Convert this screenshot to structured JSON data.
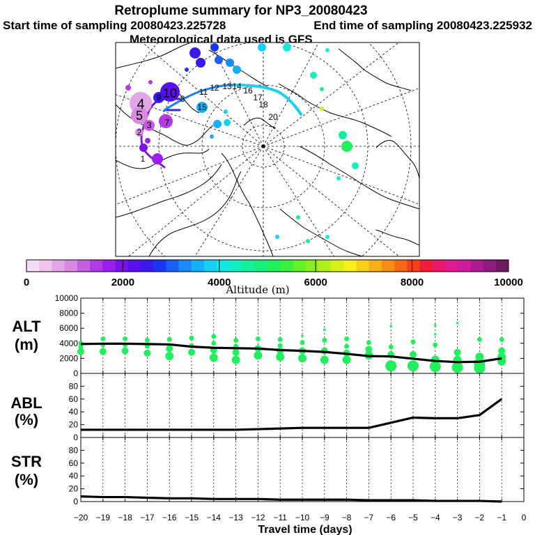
{
  "header": {
    "title": "Retroplume summary for NP3_20080423",
    "start_time": "Start time of sampling 20080423.225728",
    "end_time": "End time of sampling 20080423.225932",
    "met_data": "Meteorological data used is GFS"
  },
  "map": {
    "plume_labels": [
      {
        "text": "4",
        "color": "#000000"
      },
      {
        "text": "5",
        "color": "#000000"
      },
      {
        "text": "3",
        "color": "#000000"
      },
      {
        "text": "2",
        "color": "#000000"
      },
      {
        "text": "1",
        "color": "#000000"
      },
      {
        "text": "7",
        "color": "#000000"
      },
      {
        "text": "10",
        "color": "#000000"
      },
      {
        "text": "9",
        "color": "#000000"
      },
      {
        "text": "8",
        "color": "#000000"
      },
      {
        "text": "11",
        "color": "#000000"
      },
      {
        "text": "12",
        "color": "#000000"
      },
      {
        "text": "13",
        "color": "#000000"
      },
      {
        "text": "14",
        "color": "#000000"
      },
      {
        "text": "15",
        "color": "#000000"
      },
      {
        "text": "16",
        "color": "#000000"
      },
      {
        "text": "17",
        "color": "#000000"
      },
      {
        "text": "18",
        "color": "#000000"
      },
      {
        "text": "20",
        "color": "#000000"
      }
    ]
  },
  "colorbar": {
    "title": "Altitude (m)",
    "ticks": [
      "0",
      "2000",
      "4000",
      "6000",
      "8000",
      "10000"
    ],
    "colors": [
      "#f4dcf4",
      "#ecc4ec",
      "#e2a6e6",
      "#d88ae0",
      "#c65ee0",
      "#b13ae6",
      "#9a20ee",
      "#7c10f0",
      "#5810ee",
      "#3a18ee",
      "#1a36f4",
      "#1a60f6",
      "#1a8af8",
      "#16b0f8",
      "#14d2f6",
      "#12eae8",
      "#12f0c0",
      "#12f09a",
      "#16f07a",
      "#20f05c",
      "#3af03c",
      "#62f026",
      "#8af01c",
      "#b0f018",
      "#d8f016",
      "#f6f016",
      "#f6d016",
      "#f6b016",
      "#f68e16",
      "#f66a16",
      "#f64016",
      "#f01c3a",
      "#ea1a68",
      "#e21a90",
      "#d01aa0",
      "#b01a90",
      "#901a80",
      "#701a60"
    ]
  },
  "chart_data": [
    {
      "type": "line",
      "panel": "ALT",
      "ylabel": "ALT\n(m)",
      "ylabel_line1": "ALT",
      "ylabel_line2": "(m)",
      "ylim": [
        0,
        10000
      ],
      "yticks": [
        0,
        2000,
        4000,
        6000,
        8000,
        10000
      ],
      "x": [
        -20,
        -19,
        -18,
        -17,
        -16,
        -15,
        -14,
        -13,
        -12,
        -11,
        -10,
        -9,
        -8,
        -7,
        -6,
        -5,
        -4,
        -3,
        -2,
        -1
      ],
      "series": [
        {
          "name": "mean altitude",
          "values": [
            3900,
            3950,
            3950,
            3900,
            3850,
            3550,
            3400,
            3350,
            3300,
            3100,
            3000,
            2850,
            2600,
            2300,
            2250,
            1950,
            1650,
            1500,
            1550,
            2000
          ]
        }
      ],
      "scatter_clusters": [
        {
          "x": -20,
          "y": [
            4000,
            3500,
            2900
          ]
        },
        {
          "x": -19,
          "y": [
            4600,
            3800,
            2900
          ]
        },
        {
          "x": -18,
          "y": [
            4600,
            3800,
            3000
          ]
        },
        {
          "x": -17,
          "y": [
            4400,
            3600,
            2700
          ]
        },
        {
          "x": -16,
          "y": [
            4500,
            3300,
            2300
          ]
        },
        {
          "x": -15,
          "y": [
            4700,
            3700,
            2800
          ]
        },
        {
          "x": -14,
          "y": [
            4900,
            4000,
            3100,
            2100
          ]
        },
        {
          "x": -13,
          "y": [
            4400,
            3600,
            2800,
            1800
          ]
        },
        {
          "x": -12,
          "y": [
            4600,
            3300,
            2400
          ]
        },
        {
          "x": -11,
          "y": [
            4500,
            3700,
            3000,
            2200
          ]
        },
        {
          "x": -10,
          "y": [
            5000,
            4100,
            3000,
            2000
          ]
        },
        {
          "x": -9,
          "y": [
            5800,
            4400,
            3000,
            1800
          ]
        },
        {
          "x": -8,
          "y": [
            4600,
            3600,
            2700,
            1800
          ]
        },
        {
          "x": -7,
          "y": [
            4100,
            3200,
            2400
          ]
        },
        {
          "x": -6,
          "y": [
            6300,
            3500,
            2500,
            1000
          ]
        },
        {
          "x": -5,
          "y": [
            4200,
            2500,
            1000
          ]
        },
        {
          "x": -4,
          "y": [
            6400,
            5200,
            3800,
            1800,
            900
          ]
        },
        {
          "x": -3,
          "y": [
            6700,
            2800,
            1800,
            800
          ]
        },
        {
          "x": -2,
          "y": [
            4500,
            2200,
            1300,
            700
          ]
        },
        {
          "x": -1,
          "y": [
            4500,
            3000,
            2200,
            1600
          ]
        }
      ]
    },
    {
      "type": "line",
      "panel": "ABL",
      "ylabel_line1": "ABL",
      "ylabel_line2": "(%)",
      "ylim": [
        0,
        100
      ],
      "yticks": [
        0,
        20,
        40,
        60,
        80
      ],
      "x": [
        -20,
        -19,
        -18,
        -17,
        -16,
        -15,
        -14,
        -13,
        -12,
        -11,
        -10,
        -9,
        -8,
        -7,
        -6,
        -5,
        -4,
        -3,
        -2,
        -1
      ],
      "series": [
        {
          "name": "ABL fraction",
          "values": [
            12,
            12,
            12,
            12,
            12,
            12,
            12,
            12,
            13,
            14,
            15,
            15,
            15,
            15,
            23,
            31,
            30,
            30,
            35,
            60
          ]
        }
      ]
    },
    {
      "type": "line",
      "panel": "STR",
      "ylabel_line1": "STR",
      "ylabel_line2": "(%)",
      "ylim": [
        0,
        100
      ],
      "yticks": [
        0,
        20,
        40,
        60,
        80
      ],
      "xlabel": "Travel time (days)",
      "xticks": [
        -20,
        -19,
        -18,
        -17,
        -16,
        -15,
        -14,
        -13,
        -12,
        -11,
        -10,
        -9,
        -8,
        -7,
        -6,
        -5,
        -4,
        -3,
        -2,
        -1,
        0
      ],
      "x": [
        -20,
        -19,
        -18,
        -17,
        -16,
        -15,
        -14,
        -13,
        -12,
        -11,
        -10,
        -9,
        -8,
        -7,
        -6,
        -5,
        -4,
        -3,
        -2,
        -1
      ],
      "series": [
        {
          "name": "STR fraction",
          "values": [
            8,
            7,
            7,
            6,
            5,
            5,
            4,
            4,
            4,
            3,
            3,
            3,
            3,
            2,
            2,
            2,
            1,
            1,
            1,
            0
          ]
        }
      ]
    }
  ]
}
